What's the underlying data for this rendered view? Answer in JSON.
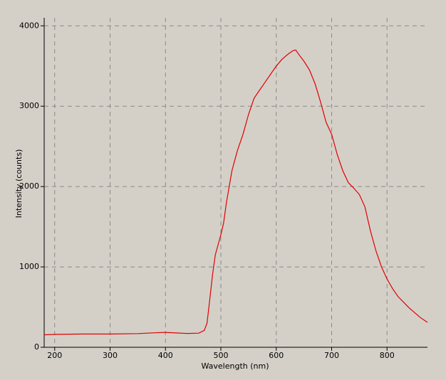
{
  "chart_data": {
    "type": "line",
    "x_label": "Wavelength (nm)",
    "y_label": "Intensity (counts)",
    "x": [
      181,
      200,
      250,
      300,
      350,
      380,
      400,
      420,
      440,
      460,
      470,
      475,
      480,
      485,
      490,
      500,
      505,
      510,
      520,
      530,
      540,
      550,
      560,
      570,
      580,
      590,
      600,
      610,
      620,
      630,
      635,
      640,
      650,
      660,
      670,
      680,
      690,
      700,
      710,
      720,
      730,
      740,
      750,
      760,
      770,
      780,
      790,
      800,
      810,
      820,
      830,
      840,
      850,
      860,
      873
    ],
    "series": [
      {
        "name": "Intensity",
        "color": "#e00000",
        "values": [
          155,
          160,
          165,
          165,
          170,
          180,
          185,
          178,
          172,
          175,
          210,
          300,
          600,
          900,
          1150,
          1400,
          1550,
          1800,
          2200,
          2450,
          2650,
          2900,
          3100,
          3200,
          3300,
          3400,
          3500,
          3580,
          3640,
          3690,
          3700,
          3650,
          3560,
          3450,
          3280,
          3050,
          2800,
          2650,
          2400,
          2200,
          2050,
          1980,
          1900,
          1750,
          1450,
          1200,
          1000,
          850,
          730,
          630,
          560,
          490,
          430,
          370,
          310
        ]
      }
    ],
    "xlim": [
      181,
      873
    ],
    "ylim": [
      0,
      4100
    ],
    "xticks": [
      200,
      300,
      400,
      500,
      600,
      700,
      800
    ],
    "yticks": [
      0,
      1000,
      2000,
      3000,
      4000
    ],
    "grid": true
  }
}
